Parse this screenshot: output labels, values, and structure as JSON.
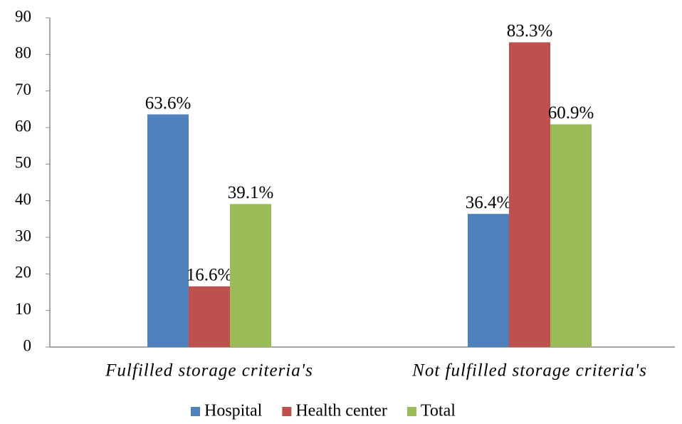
{
  "chart_data": {
    "type": "bar",
    "categories": [
      "Fulfilled storage criteria's",
      "Not fulfilled storage criteria's"
    ],
    "series": [
      {
        "name": "Hospital",
        "color": "#4f81bd",
        "values": [
          63.6,
          36.4
        ],
        "value_labels": [
          "63.6%",
          "36.4%"
        ]
      },
      {
        "name": "Health center",
        "color": "#c0504d",
        "values": [
          16.6,
          83.3
        ],
        "value_labels": [
          "16.6%",
          "83.3%"
        ]
      },
      {
        "name": "Total",
        "color": "#9bbb59",
        "values": [
          39.1,
          60.9
        ],
        "value_labels": [
          "39.1%",
          "60.9%"
        ]
      }
    ],
    "ylim": [
      0,
      90
    ],
    "yticks": [
      0,
      10,
      20,
      30,
      40,
      50,
      60,
      70,
      80,
      90
    ],
    "grid": false,
    "legend": "bottom"
  }
}
